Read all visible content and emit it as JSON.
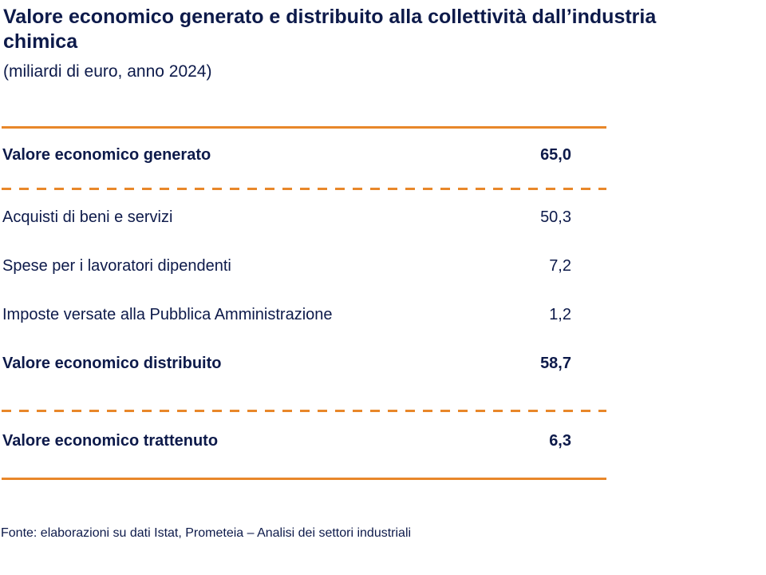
{
  "title": "Valore economico generato e distribuito alla collettività dall’industria chimica",
  "subtitle": "(miliardi di euro, anno 2024)",
  "source": "Fonte: elaborazioni su dati Istat, Prometeia – Analisi dei settori industriali",
  "colors": {
    "text": "#0d1a4a",
    "rule": "#e8872a"
  },
  "chart_data": {
    "type": "table",
    "title": "Valore economico generato e distribuito alla collettività dall’industria chimica",
    "subtitle": "(miliardi di euro, anno 2024)",
    "unit": "miliardi di euro",
    "year": "2024",
    "rows": [
      {
        "label": "Valore economico generato",
        "value": "65,0",
        "bold": true
      },
      {
        "label": "Acquisti di beni e servizi",
        "value": "50,3",
        "bold": false
      },
      {
        "label": "Spese per i lavoratori dipendenti",
        "value": "7,2",
        "bold": false
      },
      {
        "label": "Imposte versate alla Pubblica Amministrazione",
        "value": "1,2",
        "bold": false
      },
      {
        "label": "Valore economico distribuito",
        "value": "58,7",
        "bold": true
      },
      {
        "label": "Valore economico trattenuto",
        "value": "6,3",
        "bold": true
      }
    ]
  }
}
